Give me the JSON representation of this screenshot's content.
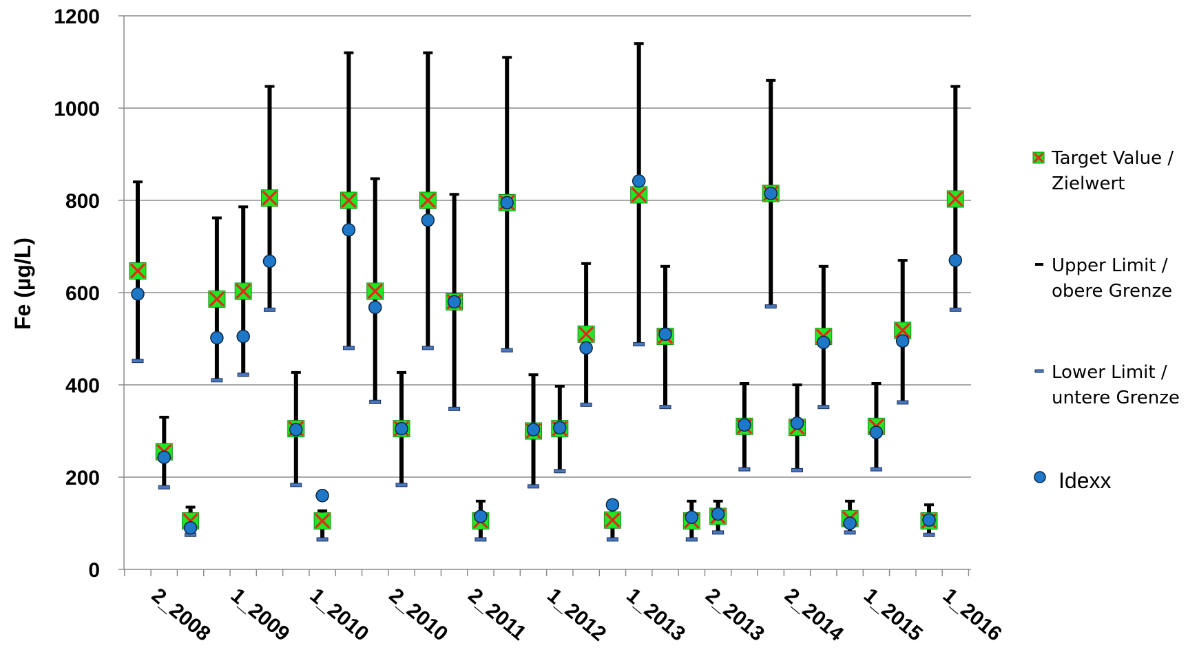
{
  "chart_data": {
    "type": "scatter",
    "ylabel": "Fe (µg/L)",
    "ylim": [
      0,
      1200
    ],
    "yticks": [
      "0",
      "200",
      "400",
      "600",
      "800",
      "1000",
      "1200"
    ],
    "grid": true,
    "legend_position": "right",
    "x_tick_labels": [
      "2_2008",
      "1_2009",
      "1_2010",
      "2_2010",
      "2_2011",
      "1_2012",
      "1_2013",
      "2_2013",
      "2_2014",
      "1_2015",
      "1_2016"
    ],
    "series": [
      {
        "name": "Target Value / Zielwert",
        "values": [
          647,
          255,
          105,
          586,
          603,
          805,
          305,
          105,
          800,
          603,
          305,
          800,
          580,
          105,
          795,
          300,
          305,
          510,
          107,
          812,
          505,
          105,
          115,
          310,
          815,
          308,
          505,
          110,
          310,
          518,
          105,
          803
        ]
      },
      {
        "name": "Upper Limit / obere Grenze",
        "values": [
          840,
          330,
          135,
          762,
          786,
          1047,
          427,
          127,
          1120,
          847,
          427,
          1120,
          813,
          148,
          1110,
          422,
          397,
          663,
          148,
          1140,
          657,
          148,
          148,
          403,
          1060,
          400,
          657,
          148,
          403,
          670,
          140,
          1047
        ]
      },
      {
        "name": "Lower Limit / untere Grenze",
        "values": [
          452,
          178,
          75,
          410,
          422,
          563,
          183,
          65,
          480,
          363,
          183,
          480,
          348,
          65,
          475,
          180,
          213,
          357,
          65,
          488,
          352,
          65,
          80,
          217,
          570,
          215,
          352,
          80,
          217,
          362,
          75,
          563
        ]
      },
      {
        "name": "Idexx",
        "values": [
          597,
          243,
          90,
          502,
          505,
          668,
          303,
          160,
          736,
          568,
          305,
          757,
          580,
          115,
          795,
          303,
          307,
          480,
          140,
          842,
          510,
          113,
          120,
          313,
          815,
          317,
          492,
          100,
          297,
          495,
          107,
          670
        ]
      }
    ]
  },
  "legend": {
    "target_line1": "Target Value /",
    "target_line2": "Zielwert",
    "upper_line1": "Upper Limit /",
    "upper_line2": "obere Grenze",
    "lower_line1": "Lower Limit /",
    "lower_line2": "untere Grenze",
    "idexx": "Idexx"
  },
  "colors": {
    "target_fill": "#22e622",
    "target_cross": "#e8251c",
    "idexx_fill": "#1f77c8",
    "idexx_stroke": "#0a2540",
    "whisker": "#000000",
    "lower_cap": "#4a78c0",
    "grid": "#8c8c8c"
  }
}
